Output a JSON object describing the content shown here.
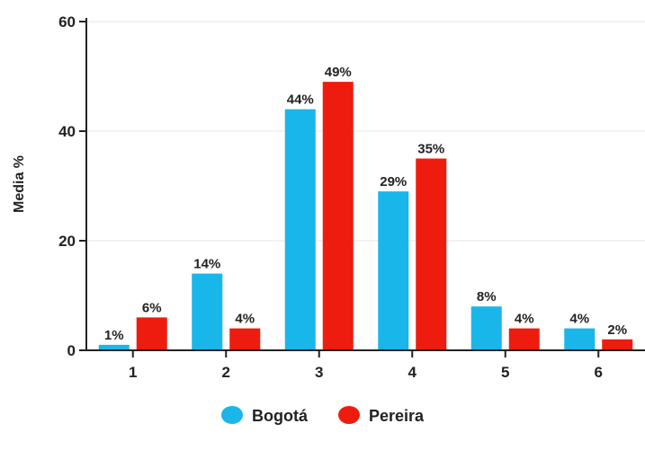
{
  "chart_data": {
    "type": "bar",
    "title": "",
    "xlabel": "",
    "ylabel": "Media %",
    "categories": [
      "1",
      "2",
      "3",
      "4",
      "5",
      "6"
    ],
    "ylim": [
      0,
      60
    ],
    "yticks": [
      0,
      20,
      40,
      60
    ],
    "grid": true,
    "legend_position": "bottom",
    "series": [
      {
        "name": "Bogotá",
        "color": "#19b6ea",
        "values": [
          1,
          14,
          44,
          29,
          8,
          4
        ],
        "labels": [
          "1%",
          "14%",
          "44%",
          "29%",
          "8%",
          "4%"
        ]
      },
      {
        "name": "Pereira",
        "color": "#ee1c0f",
        "values": [
          6,
          4,
          49,
          35,
          4,
          2
        ],
        "labels": [
          "6%",
          "4%",
          "49%",
          "35%",
          "4%",
          "2%"
        ]
      }
    ]
  }
}
